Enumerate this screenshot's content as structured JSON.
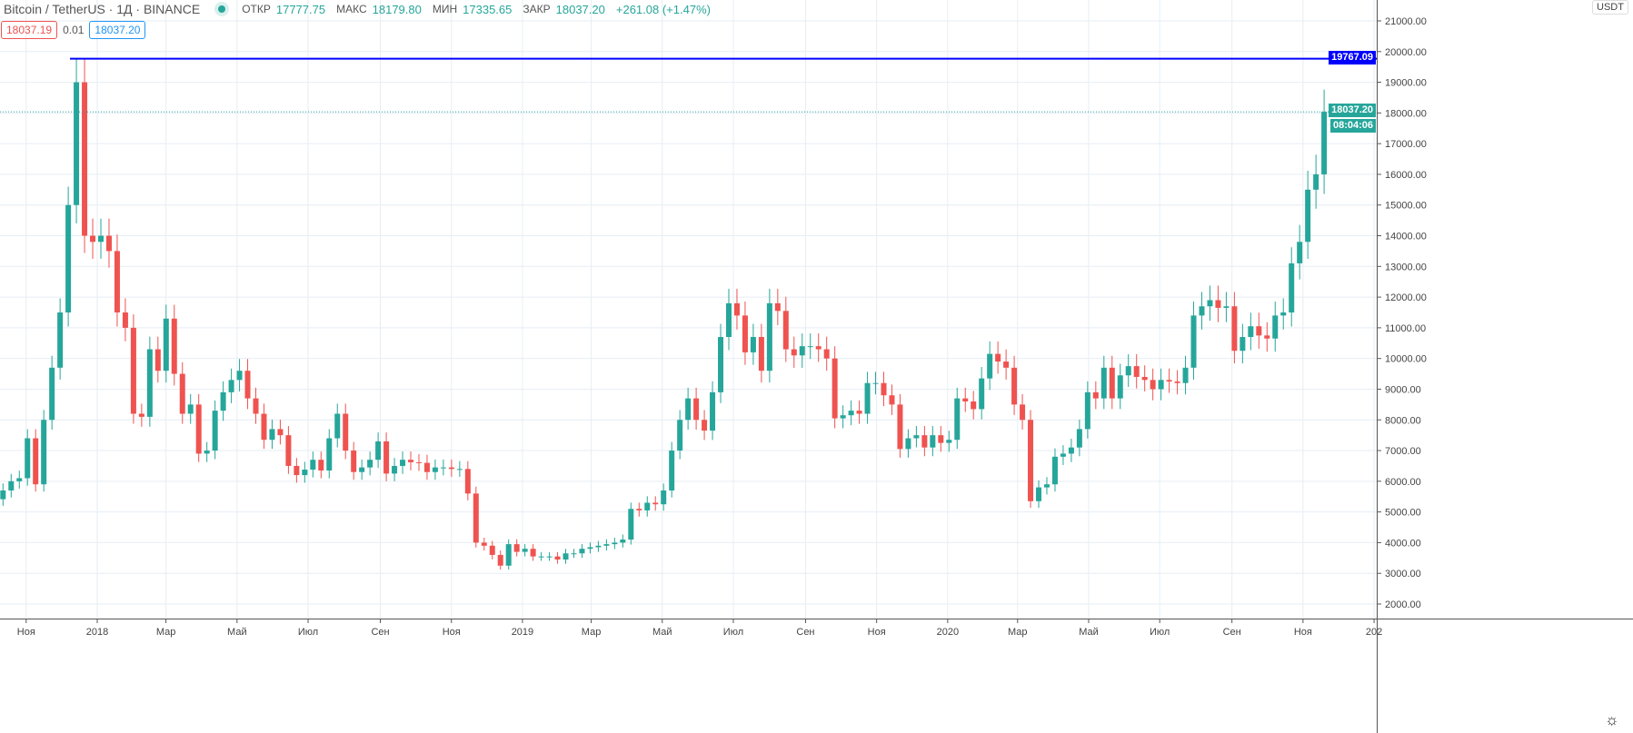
{
  "header": {
    "symbol": "Bitcoin / TetherUS · 1Д · BINANCE",
    "open_label": "ОТКР",
    "open": "17777.75",
    "high_label": "МАКС",
    "high": "18179.80",
    "low_label": "МИН",
    "low": "17335.65",
    "close_label": "ЗАКР",
    "close": "18037.20",
    "change": "+261.08 (+1.47%)"
  },
  "badges": {
    "sell": "18037.19",
    "spread": "0.01",
    "buy": "18037.20"
  },
  "price_axis": {
    "unit": "USDT",
    "labels": [
      "21000.00",
      "20000.00",
      "19000.00",
      "18000.00",
      "17000.00",
      "16000.00",
      "15000.00",
      "14000.00",
      "13000.00",
      "12000.00",
      "11000.00",
      "10000.00",
      "9000.00",
      "8000.00",
      "7000.00",
      "6000.00",
      "5000.00",
      "4000.00",
      "3000.00",
      "2000.00"
    ],
    "horizontal_line": "19767.09",
    "last_price": "18037.20",
    "countdown": "08:04:06"
  },
  "colors": {
    "up": "#26a69a",
    "down": "#ef5350",
    "line": "#0000ff",
    "grid": "#e6eef4"
  },
  "chart_data": {
    "type": "candlestick",
    "interval": "1W (approximated from daily chart)",
    "ylim": [
      1500,
      21500
    ],
    "grid": true,
    "x_ticks": [
      [
        "2017-11-01",
        "Ноя"
      ],
      [
        "2018-01-01",
        "2018"
      ],
      [
        "2018-03-01",
        "Мар"
      ],
      [
        "2018-05-01",
        "Май"
      ],
      [
        "2018-07-01",
        "Июл"
      ],
      [
        "2018-09-01",
        "Сен"
      ],
      [
        "2018-11-01",
        "Ноя"
      ],
      [
        "2019-01-01",
        "2019"
      ],
      [
        "2019-03-01",
        "Мар"
      ],
      [
        "2019-05-01",
        "Май"
      ],
      [
        "2019-07-01",
        "Июл"
      ],
      [
        "2019-09-01",
        "Сен"
      ],
      [
        "2019-11-01",
        "Ноя"
      ],
      [
        "2020-01-01",
        "2020"
      ],
      [
        "2020-03-01",
        "Мар"
      ],
      [
        "2020-05-01",
        "Май"
      ],
      [
        "2020-07-01",
        "Июл"
      ],
      [
        "2020-09-01",
        "Сен"
      ],
      [
        "2020-11-01",
        "Ноя"
      ],
      [
        "2021-01-01",
        "202"
      ]
    ],
    "closes": [
      [
        "2017-10-09",
        5700
      ],
      [
        "2017-10-16",
        6000
      ],
      [
        "2017-10-23",
        6100
      ],
      [
        "2017-10-30",
        7400
      ],
      [
        "2017-11-06",
        5900
      ],
      [
        "2017-11-13",
        8000
      ],
      [
        "2017-11-20",
        9700
      ],
      [
        "2017-11-27",
        11500
      ],
      [
        "2017-12-04",
        15000
      ],
      [
        "2017-12-11",
        19000
      ],
      [
        "2017-12-18",
        14000
      ],
      [
        "2017-12-25",
        13800
      ],
      [
        "2018-01-01",
        14000
      ],
      [
        "2018-01-08",
        13500
      ],
      [
        "2018-01-15",
        11500
      ],
      [
        "2018-01-22",
        11000
      ],
      [
        "2018-01-29",
        8200
      ],
      [
        "2018-02-05",
        8100
      ],
      [
        "2018-02-12",
        10300
      ],
      [
        "2018-02-19",
        9600
      ],
      [
        "2018-02-26",
        11300
      ],
      [
        "2018-03-05",
        9500
      ],
      [
        "2018-03-12",
        8200
      ],
      [
        "2018-03-19",
        8500
      ],
      [
        "2018-03-26",
        6900
      ],
      [
        "2018-04-02",
        7000
      ],
      [
        "2018-04-09",
        8300
      ],
      [
        "2018-04-16",
        8900
      ],
      [
        "2018-04-23",
        9300
      ],
      [
        "2018-04-30",
        9600
      ],
      [
        "2018-05-07",
        8700
      ],
      [
        "2018-05-14",
        8200
      ],
      [
        "2018-05-21",
        7350
      ],
      [
        "2018-05-28",
        7700
      ],
      [
        "2018-06-04",
        7500
      ],
      [
        "2018-06-11",
        6500
      ],
      [
        "2018-06-18",
        6200
      ],
      [
        "2018-06-25",
        6380
      ],
      [
        "2018-07-02",
        6700
      ],
      [
        "2018-07-09",
        6350
      ],
      [
        "2018-07-16",
        7400
      ],
      [
        "2018-07-23",
        8200
      ],
      [
        "2018-07-30",
        7000
      ],
      [
        "2018-08-06",
        6300
      ],
      [
        "2018-08-13",
        6450
      ],
      [
        "2018-08-20",
        6700
      ],
      [
        "2018-08-27",
        7300
      ],
      [
        "2018-09-03",
        6250
      ],
      [
        "2018-09-10",
        6500
      ],
      [
        "2018-09-17",
        6700
      ],
      [
        "2018-09-24",
        6620
      ],
      [
        "2018-10-01",
        6600
      ],
      [
        "2018-10-08",
        6300
      ],
      [
        "2018-10-15",
        6450
      ],
      [
        "2018-10-22",
        6450
      ],
      [
        "2018-10-29",
        6400
      ],
      [
        "2018-11-05",
        6400
      ],
      [
        "2018-11-12",
        5600
      ],
      [
        "2018-11-19",
        4000
      ],
      [
        "2018-11-26",
        3900
      ],
      [
        "2018-12-03",
        3600
      ],
      [
        "2018-12-10",
        3250
      ],
      [
        "2018-12-17",
        3950
      ],
      [
        "2018-12-24",
        3700
      ],
      [
        "2018-12-31",
        3800
      ],
      [
        "2019-01-07",
        3550
      ],
      [
        "2019-01-14",
        3550
      ],
      [
        "2019-01-21",
        3550
      ],
      [
        "2019-01-28",
        3450
      ],
      [
        "2019-02-04",
        3650
      ],
      [
        "2019-02-11",
        3650
      ],
      [
        "2019-02-18",
        3800
      ],
      [
        "2019-02-25",
        3850
      ],
      [
        "2019-03-04",
        3900
      ],
      [
        "2019-03-11",
        3950
      ],
      [
        "2019-03-18",
        4000
      ],
      [
        "2019-03-25",
        4100
      ],
      [
        "2019-04-01",
        5100
      ],
      [
        "2019-04-08",
        5050
      ],
      [
        "2019-04-15",
        5300
      ],
      [
        "2019-04-22",
        5250
      ],
      [
        "2019-04-29",
        5700
      ],
      [
        "2019-05-06",
        7000
      ],
      [
        "2019-05-13",
        8000
      ],
      [
        "2019-05-20",
        8700
      ],
      [
        "2019-05-27",
        8000
      ],
      [
        "2019-06-03",
        7650
      ],
      [
        "2019-06-10",
        8900
      ],
      [
        "2019-06-17",
        10700
      ],
      [
        "2019-06-24",
        11800
      ],
      [
        "2019-07-01",
        11400
      ],
      [
        "2019-07-08",
        10200
      ],
      [
        "2019-07-15",
        10700
      ],
      [
        "2019-07-22",
        9600
      ],
      [
        "2019-07-29",
        11800
      ],
      [
        "2019-08-05",
        11550
      ],
      [
        "2019-08-12",
        10300
      ],
      [
        "2019-08-19",
        10100
      ],
      [
        "2019-08-26",
        10400
      ],
      [
        "2019-09-02",
        10400
      ],
      [
        "2019-09-09",
        10300
      ],
      [
        "2019-09-16",
        10000
      ],
      [
        "2019-09-23",
        8050
      ],
      [
        "2019-09-30",
        8150
      ],
      [
        "2019-10-07",
        8300
      ],
      [
        "2019-10-14",
        8200
      ],
      [
        "2019-10-21",
        9200
      ],
      [
        "2019-10-28",
        9200
      ],
      [
        "2019-11-04",
        8800
      ],
      [
        "2019-11-11",
        8500
      ],
      [
        "2019-11-18",
        7050
      ],
      [
        "2019-11-25",
        7400
      ],
      [
        "2019-12-02",
        7500
      ],
      [
        "2019-12-09",
        7100
      ],
      [
        "2019-12-16",
        7500
      ],
      [
        "2019-12-23",
        7250
      ],
      [
        "2019-12-30",
        7350
      ],
      [
        "2020-01-06",
        8700
      ],
      [
        "2020-01-13",
        8600
      ],
      [
        "2020-01-20",
        8350
      ],
      [
        "2020-01-27",
        9350
      ],
      [
        "2020-02-03",
        10150
      ],
      [
        "2020-02-10",
        9900
      ],
      [
        "2020-02-17",
        9700
      ],
      [
        "2020-02-24",
        8500
      ],
      [
        "2020-03-02",
        8000
      ],
      [
        "2020-03-09",
        5350
      ],
      [
        "2020-03-16",
        5800
      ],
      [
        "2020-03-23",
        5900
      ],
      [
        "2020-03-30",
        6800
      ],
      [
        "2020-04-06",
        6900
      ],
      [
        "2020-04-13",
        7100
      ],
      [
        "2020-04-20",
        7700
      ],
      [
        "2020-04-27",
        8900
      ],
      [
        "2020-05-04",
        8700
      ],
      [
        "2020-05-11",
        9700
      ],
      [
        "2020-05-18",
        8700
      ],
      [
        "2020-05-25",
        9450
      ],
      [
        "2020-06-01",
        9750
      ],
      [
        "2020-06-08",
        9400
      ],
      [
        "2020-06-15",
        9300
      ],
      [
        "2020-06-22",
        9000
      ],
      [
        "2020-06-29",
        9300
      ],
      [
        "2020-07-06",
        9250
      ],
      [
        "2020-07-13",
        9200
      ],
      [
        "2020-07-20",
        9700
      ],
      [
        "2020-07-27",
        11400
      ],
      [
        "2020-08-03",
        11700
      ],
      [
        "2020-08-10",
        11900
      ],
      [
        "2020-08-17",
        11650
      ],
      [
        "2020-08-24",
        11700
      ],
      [
        "2020-08-31",
        10250
      ],
      [
        "2020-09-07",
        10700
      ],
      [
        "2020-09-14",
        11050
      ],
      [
        "2020-09-21",
        10750
      ],
      [
        "2020-09-28",
        10650
      ],
      [
        "2020-10-05",
        11400
      ],
      [
        "2020-10-12",
        11500
      ],
      [
        "2020-10-19",
        13100
      ],
      [
        "2020-10-26",
        13800
      ],
      [
        "2020-11-02",
        15500
      ],
      [
        "2020-11-09",
        16000
      ],
      [
        "2020-11-16",
        18037.2
      ]
    ]
  }
}
